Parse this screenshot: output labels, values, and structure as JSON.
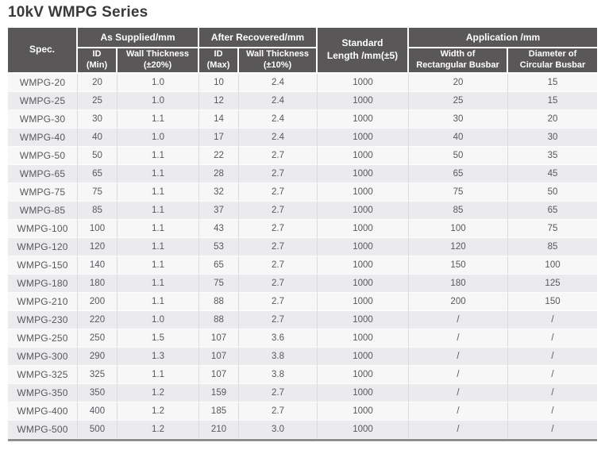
{
  "page": {
    "title": "10kV WMPG Series"
  },
  "colors": {
    "header_background": "#595757",
    "header_text": "#ffffff",
    "row_odd_background": "#f7f7f8",
    "row_even_background": "#ebebed",
    "body_text": "#58585a",
    "title_text": "#3a3a3a",
    "bottom_border": "#8e8e90"
  },
  "table": {
    "header": {
      "spec": "Spec.",
      "as_supplied": "As Supplied/mm",
      "after_recovered": "After Recovered/mm",
      "standard_length_line1": "Standard",
      "standard_length_line2": "Length /mm(±5)",
      "application": "Application /mm",
      "id_min_line1": "ID",
      "id_min_line2": "(Min)",
      "wall_thickness_20_line1": "Wall Thickness",
      "wall_thickness_20_line2": "(±20%)",
      "id_max_line1": "ID",
      "id_max_line2": "(Max)",
      "wall_thickness_10_line1": "Wall Thickness",
      "wall_thickness_10_line2": "(±10%)",
      "width_rect_line1": "Width of",
      "width_rect_line2": "Rectangular Busbar",
      "dia_circ_line1": "Diameter of",
      "dia_circ_line2": "Circular Busbar"
    },
    "column_keys": [
      "spec",
      "id-min",
      "wall-thickness-20",
      "id-max",
      "wall-thickness-10",
      "standard-length",
      "width-rectangular-busbar",
      "diameter-circular-busbar"
    ],
    "rows": [
      [
        "WMPG-20",
        "20",
        "1.0",
        "10",
        "2.4",
        "1000",
        "20",
        "15"
      ],
      [
        "WMPG-25",
        "25",
        "1.0",
        "12",
        "2.4",
        "1000",
        "25",
        "15"
      ],
      [
        "WMPG-30",
        "30",
        "1.1",
        "14",
        "2.4",
        "1000",
        "30",
        "20"
      ],
      [
        "WMPG-40",
        "40",
        "1.0",
        "17",
        "2.4",
        "1000",
        "40",
        "30"
      ],
      [
        "WMPG-50",
        "50",
        "1.1",
        "22",
        "2.7",
        "1000",
        "50",
        "35"
      ],
      [
        "WMPG-65",
        "65",
        "1.1",
        "28",
        "2.7",
        "1000",
        "65",
        "45"
      ],
      [
        "WMPG-75",
        "75",
        "1.1",
        "32",
        "2.7",
        "1000",
        "75",
        "50"
      ],
      [
        "WMPG-85",
        "85",
        "1.1",
        "37",
        "2.7",
        "1000",
        "85",
        "65"
      ],
      [
        "WMPG-100",
        "100",
        "1.1",
        "43",
        "2.7",
        "1000",
        "100",
        "75"
      ],
      [
        "WMPG-120",
        "120",
        "1.1",
        "53",
        "2.7",
        "1000",
        "120",
        "85"
      ],
      [
        "WMPG-150",
        "140",
        "1.1",
        "65",
        "2.7",
        "1000",
        "150",
        "100"
      ],
      [
        "WMPG-180",
        "180",
        "1.1",
        "75",
        "2.7",
        "1000",
        "180",
        "125"
      ],
      [
        "WMPG-210",
        "200",
        "1.1",
        "88",
        "2.7",
        "1000",
        "200",
        "150"
      ],
      [
        "WMPG-230",
        "220",
        "1.0",
        "88",
        "2.7",
        "1000",
        "/",
        "/"
      ],
      [
        "WMPG-250",
        "250",
        "1.5",
        "107",
        "3.6",
        "1000",
        "/",
        "/"
      ],
      [
        "WMPG-300",
        "290",
        "1.3",
        "107",
        "3.8",
        "1000",
        "/",
        "/"
      ],
      [
        "WMPG-325",
        "325",
        "1.1",
        "107",
        "3.8",
        "1000",
        "/",
        "/"
      ],
      [
        "WMPG-350",
        "350",
        "1.2",
        "159",
        "2.7",
        "1000",
        "/",
        "/"
      ],
      [
        "WMPG-400",
        "400",
        "1.2",
        "185",
        "2.7",
        "1000",
        "/",
        "/"
      ],
      [
        "WMPG-500",
        "500",
        "1.2",
        "210",
        "3.0",
        "1000",
        "/",
        "/"
      ]
    ]
  }
}
